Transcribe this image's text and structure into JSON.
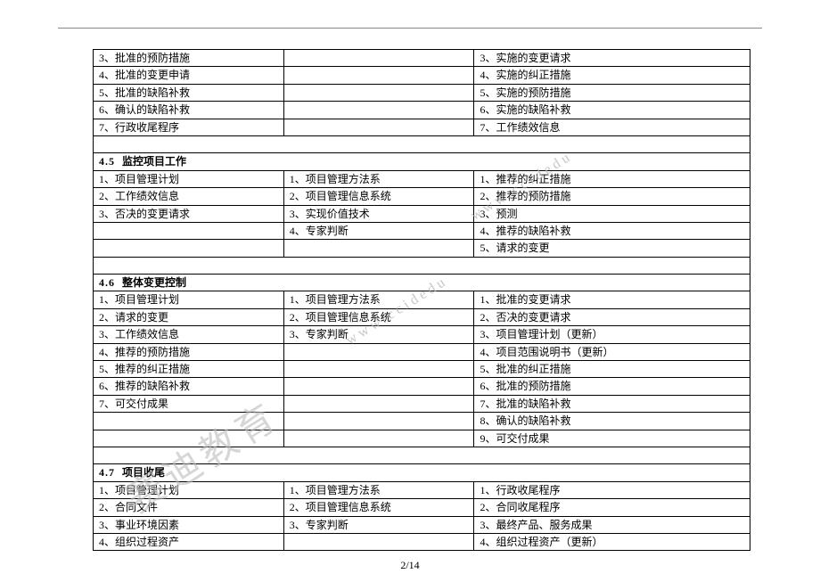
{
  "page_number": "2/14",
  "watermark_main": "赛迪教育",
  "watermark_url": "www.ccidedu",
  "colors": {
    "border": "#000000",
    "background": "#ffffff",
    "text": "#000000",
    "watermark": "#bcbcbc",
    "top_rule": "#888888"
  },
  "table": {
    "block0": {
      "rows": [
        [
          "3、批准的预防措施",
          "",
          "3、实施的变更请求"
        ],
        [
          "4、批准的变更申请",
          "",
          "4、实施的纠正措施"
        ],
        [
          "5、批准的缺陷补救",
          "",
          "5、实施的预防措施"
        ],
        [
          "6、确认的缺陷补救",
          "",
          "6、实施的缺陷补救"
        ],
        [
          "7、行政收尾程序",
          "",
          "7、工作绩效信息"
        ]
      ],
      "gap": true
    },
    "block1": {
      "header_num": "4.5",
      "header_title": "监控项目工作",
      "rows": [
        [
          "1、项目管理计划",
          "1、项目管理方法系",
          "1、推荐的纠正措施"
        ],
        [
          "2、工作绩效信息",
          "2、项目管理信息系统",
          "2、推荐的预防措施"
        ],
        [
          "3、否决的变更请求",
          "3、实现价值技术",
          "3、预测"
        ],
        [
          "",
          "4、专家判断",
          "4、推荐的缺陷补救"
        ],
        [
          "",
          "",
          "5、请求的变更"
        ]
      ],
      "gap": true
    },
    "block2": {
      "header_num": "4.6",
      "header_title": "整体变更控制",
      "rows": [
        [
          "1、项目管理计划",
          "1、项目管理方法系",
          "1、批准的变更请求"
        ],
        [
          "2、请求的变更",
          "2、项目管理信息系统",
          "2、否决的变更请求"
        ],
        [
          "3、工作绩效信息",
          "3、专家判断",
          "3、项目管理计划（更新）"
        ],
        [
          "4、推荐的预防措施",
          "",
          "4、项目范围说明书（更新）"
        ],
        [
          "5、推荐的纠正措施",
          "",
          "5、批准的纠正措施"
        ],
        [
          "6、推荐的缺陷补救",
          "",
          "6、批准的预防措施"
        ],
        [
          "7、可交付成果",
          "",
          "7、批准的缺陷补救"
        ],
        [
          "",
          "",
          "8、确认的缺陷补救"
        ],
        [
          "",
          "",
          "9、可交付成果"
        ]
      ],
      "gap": true
    },
    "block3": {
      "header_num": "4.7",
      "header_title": "项目收尾",
      "rows": [
        [
          "1、项目管理计划",
          "1、项目管理方法系",
          "1、行政收尾程序"
        ],
        [
          "2、合同文件",
          "2、项目管理信息系统",
          "2、合同收尾程序"
        ],
        [
          "3、事业环境因素",
          "3、专家判断",
          "3、最终产品、服务成果"
        ],
        [
          "4、组织过程资产",
          "",
          "4、组织过程资产（更新）"
        ]
      ],
      "gap": false
    }
  }
}
